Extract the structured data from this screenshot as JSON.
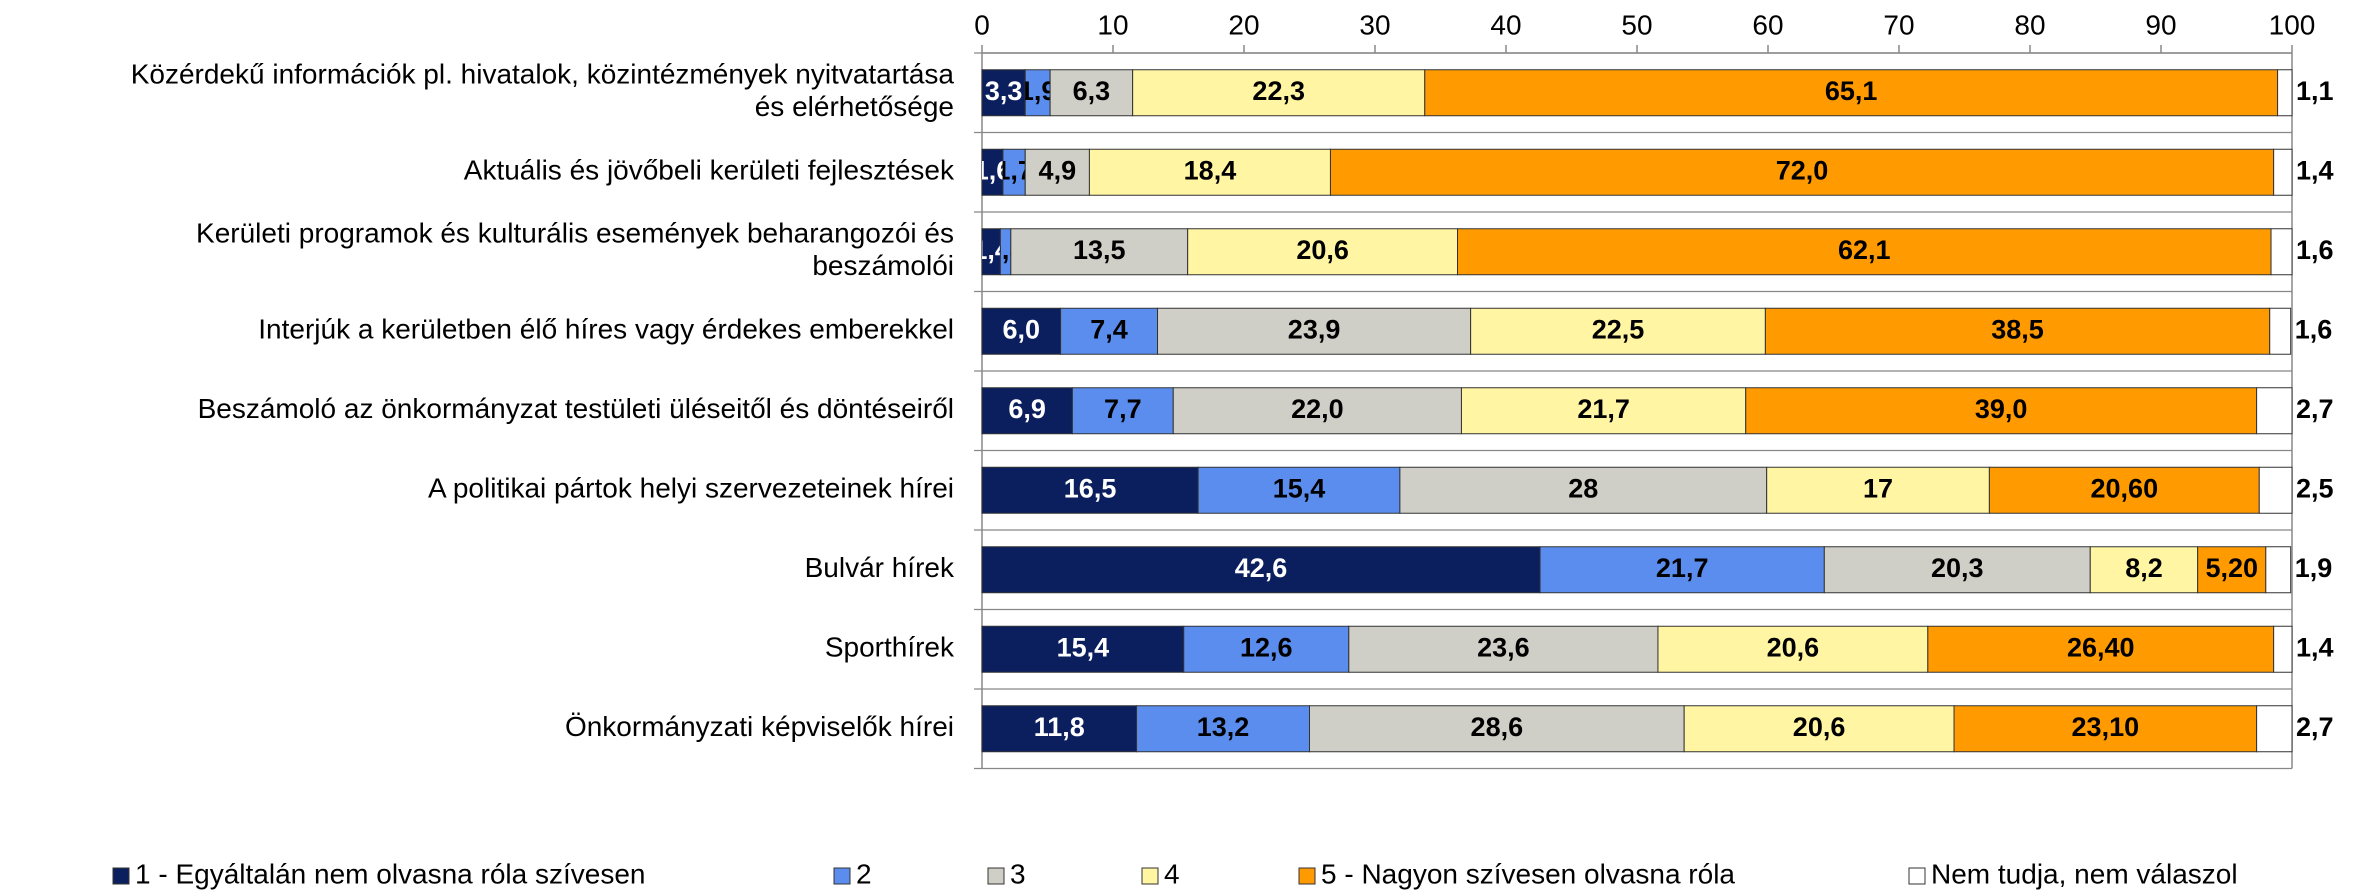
{
  "chart_data": {
    "type": "stacked_barh",
    "categories": [
      "Közérdekű információk pl. hivatalok, közintézmények nyitvatartása\nés elérhetősége",
      "Aktuális és jövőbeli kerületi fejlesztések",
      "Kerületi programok és kulturális események beharangozói és\nbeszámolói",
      "Interjúk a kerületben élő híres vagy érdekes emberekkel",
      "Beszámoló az önkormányzat testületi üléseitől és döntéseiről",
      "A politikai pártok helyi szervezeteinek hírei",
      "Bulvár hírek",
      "Sporthírek",
      "Önkormányzati képviselők hírei"
    ],
    "series": [
      {
        "name": "1 - Egyáltalán nem olvasna róla szívesen",
        "color": "#0b1f5e",
        "values": [
          3.3,
          1.6,
          1.4,
          6.0,
          6.9,
          16.5,
          42.6,
          15.4,
          11.8
        ],
        "value_labels": [
          "3,3",
          "1,6",
          "1,4",
          "6,0",
          "6,9",
          "16,5",
          "42,6",
          "15,4",
          "11,8"
        ]
      },
      {
        "name": "2",
        "color": "#5b8def",
        "values": [
          1.9,
          1.7,
          0.8,
          7.4,
          7.7,
          15.4,
          21.7,
          12.6,
          13.2
        ],
        "value_labels": [
          "1,9",
          "1,7",
          "0,8",
          "7,4",
          "7,7",
          "15,4",
          "21,7",
          "12,6",
          "13,2"
        ]
      },
      {
        "name": "3",
        "color": "#d0cfc7",
        "values": [
          6.3,
          4.9,
          13.5,
          23.9,
          22.0,
          28,
          20.3,
          23.6,
          28.6
        ],
        "value_labels": [
          "6,3",
          "4,9",
          "13,5",
          "23,9",
          "22,0",
          "28",
          "20,3",
          "23,6",
          "28,6"
        ]
      },
      {
        "name": "4",
        "color": "#fff5a3",
        "values": [
          22.3,
          18.4,
          20.6,
          22.5,
          21.7,
          17,
          8.2,
          20.6,
          20.6
        ],
        "value_labels": [
          "22,3",
          "18,4",
          "20,6",
          "22,5",
          "21,7",
          "17",
          "8,2",
          "20,6",
          "20,6"
        ]
      },
      {
        "name": "5 - Nagyon szívesen olvasna róla",
        "color": "#ff9a00",
        "values": [
          65.1,
          72.0,
          62.1,
          38.5,
          39.0,
          20.6,
          5.2,
          26.4,
          23.1
        ],
        "value_labels": [
          "65,1",
          "72,0",
          "62,1",
          "38,5",
          "39,0",
          "20,60",
          "5,20",
          "26,40",
          "23,10"
        ]
      },
      {
        "name": "Nem tudja, nem válaszol",
        "color": "#ffffff",
        "values": [
          1.1,
          1.4,
          1.6,
          1.6,
          2.7,
          2.5,
          1.9,
          1.4,
          2.7
        ],
        "value_labels": [
          "1,1",
          "1,4",
          "1,6",
          "1,6",
          "2,7",
          "2,5",
          "1,9",
          "1,4",
          "2,7"
        ]
      }
    ],
    "xlim": [
      0,
      100
    ],
    "xticks": [
      0,
      10,
      20,
      30,
      40,
      50,
      60,
      70,
      80,
      90,
      100
    ],
    "legend": "bottom"
  }
}
